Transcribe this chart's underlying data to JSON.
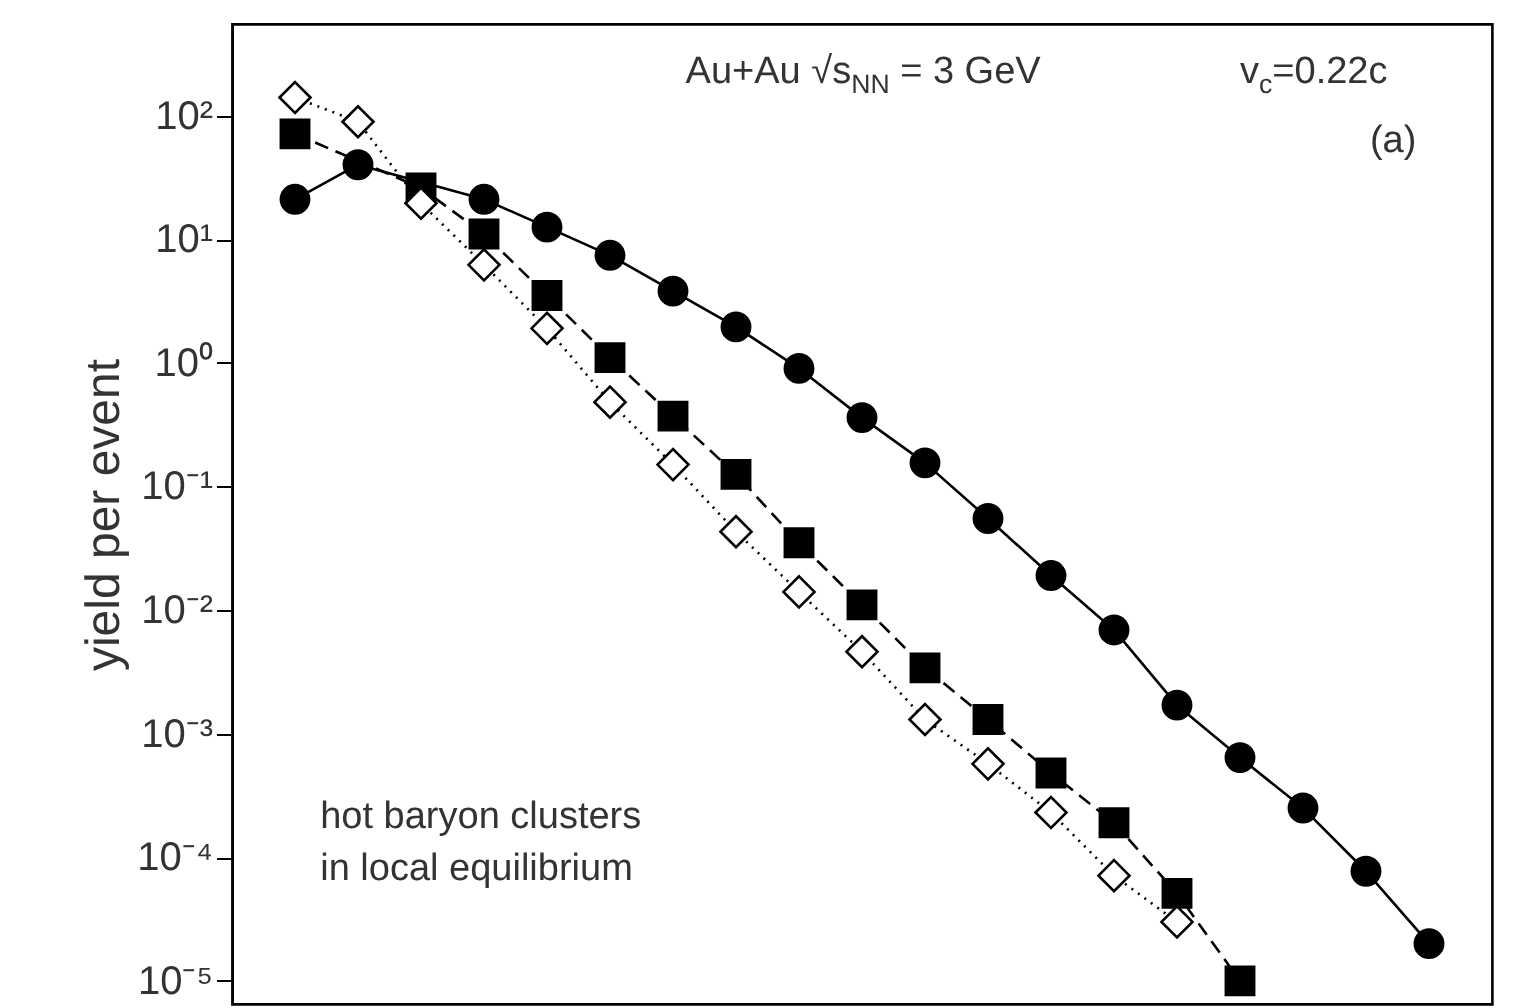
{
  "chart_data": {
    "type": "line",
    "ylabel": "yield per event",
    "log": true,
    "categories": [
      null,
      null,
      null,
      null,
      null,
      null,
      null,
      null,
      null,
      null,
      null,
      null,
      null,
      null,
      null,
      null,
      null,
      null,
      null
    ],
    "series": [
      {
        "color": "#000000",
        "marker": "circle",
        "line_style": "solid",
        "values": [
          21,
          40,
          null,
          21,
          12.5,
          7.4,
          3.8,
          1.95,
          0.9,
          0.36,
          0.155,
          0.055,
          0.019,
          0.0069,
          0.0017,
          0.00064,
          0.00025,
          7.7e-05,
          2e-05
        ]
      },
      {
        "color": "#000000",
        "marker": "square",
        "line_style": "dashed",
        "values": [
          71,
          null,
          26,
          11,
          3.5,
          1.1,
          0.37,
          0.125,
          0.035,
          0.011,
          0.0034,
          0.0013,
          0.00048,
          0.00019,
          5.1e-05,
          1e-05,
          null,
          null,
          null
        ]
      },
      {
        "color": "#000000",
        "marker": "diamond",
        "line_style": "dotted",
        "values": [
          140,
          89,
          19.5,
          6.2,
          1.9,
          0.48,
          0.15,
          0.043,
          0.014,
          0.0046,
          0.0013,
          0.00057,
          0.00023,
          7.1e-05,
          3e-05,
          null,
          null,
          null,
          null
        ]
      }
    ],
    "ylim": [
      6.5e-06,
      550
    ],
    "yticks": [
      {
        "value": 1e-05,
        "label": "10⁻⁵"
      },
      {
        "value": 0.0001,
        "label": "10⁻⁴"
      },
      {
        "value": 0.001,
        "label": "10⁻³"
      },
      {
        "value": 0.01,
        "label": "10⁻²"
      },
      {
        "value": 0.1,
        "label": "10⁻¹"
      },
      {
        "value": 1,
        "label": "10⁰"
      },
      {
        "value": 10,
        "label": "10¹"
      },
      {
        "value": 100,
        "label": "10²"
      }
    ],
    "annotations": [
      "Au+Au √s$_{NN}$ = 3 GeV",
      "v$_{c}$=0.22c",
      "(a)",
      "hot baryon clusters\nin local equilibrium"
    ],
    "grid": false
  }
}
